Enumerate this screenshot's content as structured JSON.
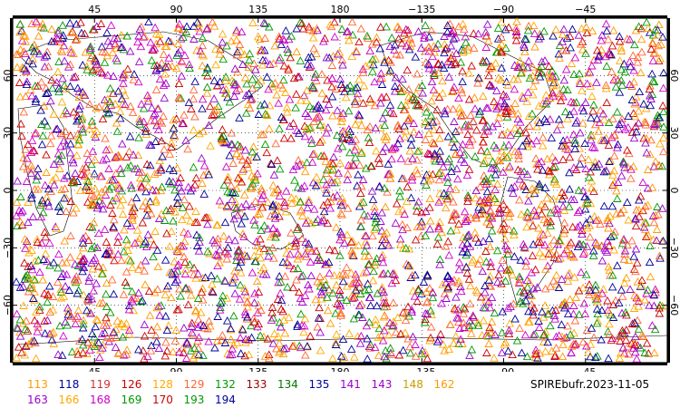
{
  "map": {
    "top_lon_ticks": [
      "45",
      "90",
      "135",
      "180",
      "−135",
      "−90",
      "−45"
    ],
    "bottom_lon_ticks": [
      "45",
      "90",
      "135",
      "180",
      "−135",
      "−90",
      "−45"
    ],
    "left_lat_ticks": [
      "60",
      "30",
      "0",
      "−30",
      "−60"
    ],
    "right_lat_ticks": [
      "60",
      "30",
      "0",
      "−30",
      "−60"
    ],
    "lon_values": [
      45,
      90,
      135,
      180,
      -135,
      -90,
      -45
    ],
    "lat_values": [
      60,
      30,
      0,
      -30,
      -60
    ],
    "lon_range": [
      0,
      360
    ],
    "lat_range": [
      -90,
      90
    ],
    "marker": "triangle-outline",
    "grid": "dotted"
  },
  "legend": {
    "row1": [
      {
        "label": "113",
        "color": "#ff9900"
      },
      {
        "label": "118",
        "color": "#000099"
      },
      {
        "label": "119",
        "color": "#cc3333"
      },
      {
        "label": "126",
        "color": "#cc0000"
      },
      {
        "label": "128",
        "color": "#ffaa00"
      },
      {
        "label": "129",
        "color": "#ff6633"
      },
      {
        "label": "132",
        "color": "#009900"
      },
      {
        "label": "133",
        "color": "#990000"
      },
      {
        "label": "134",
        "color": "#007700"
      },
      {
        "label": "135",
        "color": "#000099"
      },
      {
        "label": "141",
        "color": "#9900cc"
      },
      {
        "label": "143",
        "color": "#9900cc"
      },
      {
        "label": "148",
        "color": "#cc9900"
      },
      {
        "label": "162",
        "color": "#ff9900"
      }
    ],
    "row2": [
      {
        "label": "163",
        "color": "#9900cc"
      },
      {
        "label": "166",
        "color": "#ffaa00"
      },
      {
        "label": "168",
        "color": "#cc00cc"
      },
      {
        "label": "169",
        "color": "#009900"
      },
      {
        "label": "170",
        "color": "#cc0000"
      },
      {
        "label": "193",
        "color": "#009900"
      },
      {
        "label": "194",
        "color": "#000099"
      }
    ]
  },
  "source_label": "SPIREbufr.2023-11-05",
  "palette": [
    "#9900cc",
    "#cc00cc",
    "#ff9900",
    "#009900",
    "#000099",
    "#cc0000",
    "#ff6633",
    "#ffaa00"
  ]
}
